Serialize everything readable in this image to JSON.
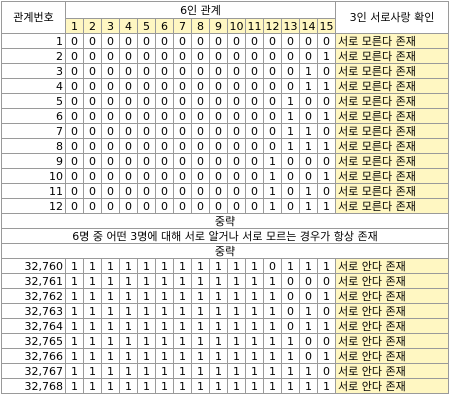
{
  "header": {
    "col_a": "관계번호",
    "group": "6인 관계",
    "col_result": "3인 서로사랑 확인",
    "indices": [
      "1",
      "2",
      "3",
      "4",
      "5",
      "6",
      "7",
      "8",
      "9",
      "10",
      "11",
      "12",
      "13",
      "14",
      "15"
    ]
  },
  "top_rows": [
    {
      "n": "1",
      "bits": [
        "0",
        "0",
        "0",
        "0",
        "0",
        "0",
        "0",
        "0",
        "0",
        "0",
        "0",
        "0",
        "0",
        "0",
        "0"
      ],
      "result": "서로 모른다 존재"
    },
    {
      "n": "2",
      "bits": [
        "0",
        "0",
        "0",
        "0",
        "0",
        "0",
        "0",
        "0",
        "0",
        "0",
        "0",
        "0",
        "0",
        "0",
        "1"
      ],
      "result": "서로 모른다 존재"
    },
    {
      "n": "3",
      "bits": [
        "0",
        "0",
        "0",
        "0",
        "0",
        "0",
        "0",
        "0",
        "0",
        "0",
        "0",
        "0",
        "0",
        "1",
        "0"
      ],
      "result": "서로 모른다 존재"
    },
    {
      "n": "4",
      "bits": [
        "0",
        "0",
        "0",
        "0",
        "0",
        "0",
        "0",
        "0",
        "0",
        "0",
        "0",
        "0",
        "0",
        "1",
        "1"
      ],
      "result": "서로 모른다 존재"
    },
    {
      "n": "5",
      "bits": [
        "0",
        "0",
        "0",
        "0",
        "0",
        "0",
        "0",
        "0",
        "0",
        "0",
        "0",
        "0",
        "1",
        "0",
        "0"
      ],
      "result": "서로 모른다 존재"
    },
    {
      "n": "6",
      "bits": [
        "0",
        "0",
        "0",
        "0",
        "0",
        "0",
        "0",
        "0",
        "0",
        "0",
        "0",
        "0",
        "1",
        "0",
        "1"
      ],
      "result": "서로 모른다 존재"
    },
    {
      "n": "7",
      "bits": [
        "0",
        "0",
        "0",
        "0",
        "0",
        "0",
        "0",
        "0",
        "0",
        "0",
        "0",
        "0",
        "1",
        "1",
        "0"
      ],
      "result": "서로 모른다 존재"
    },
    {
      "n": "8",
      "bits": [
        "0",
        "0",
        "0",
        "0",
        "0",
        "0",
        "0",
        "0",
        "0",
        "0",
        "0",
        "0",
        "1",
        "1",
        "1"
      ],
      "result": "서로 모른다 존재"
    },
    {
      "n": "9",
      "bits": [
        "0",
        "0",
        "0",
        "0",
        "0",
        "0",
        "0",
        "0",
        "0",
        "0",
        "0",
        "1",
        "0",
        "0",
        "0"
      ],
      "result": "서로 모른다 존재"
    },
    {
      "n": "10",
      "bits": [
        "0",
        "0",
        "0",
        "0",
        "0",
        "0",
        "0",
        "0",
        "0",
        "0",
        "0",
        "1",
        "0",
        "0",
        "1"
      ],
      "result": "서로 모른다 존재"
    },
    {
      "n": "11",
      "bits": [
        "0",
        "0",
        "0",
        "0",
        "0",
        "0",
        "0",
        "0",
        "0",
        "0",
        "0",
        "1",
        "0",
        "1",
        "0"
      ],
      "result": "서로 모른다 존재"
    },
    {
      "n": "12",
      "bits": [
        "0",
        "0",
        "0",
        "0",
        "0",
        "0",
        "0",
        "0",
        "0",
        "0",
        "0",
        "1",
        "0",
        "1",
        "1"
      ],
      "result": "서로 모른다 존재"
    }
  ],
  "ellipsis_1": "중략",
  "note": "6명 중 어떤 3명에 대해 서로 알거나 서로 모르는 경우가 항상 존재",
  "ellipsis_2": "중략",
  "bottom_rows": [
    {
      "n": "32,760",
      "bits": [
        "1",
        "1",
        "1",
        "1",
        "1",
        "1",
        "1",
        "1",
        "1",
        "1",
        "1",
        "0",
        "1",
        "1",
        "1"
      ],
      "result": "서로 안다 존재"
    },
    {
      "n": "32,761",
      "bits": [
        "1",
        "1",
        "1",
        "1",
        "1",
        "1",
        "1",
        "1",
        "1",
        "1",
        "1",
        "1",
        "0",
        "0",
        "0"
      ],
      "result": "서로 안다 존재"
    },
    {
      "n": "32,762",
      "bits": [
        "1",
        "1",
        "1",
        "1",
        "1",
        "1",
        "1",
        "1",
        "1",
        "1",
        "1",
        "1",
        "0",
        "0",
        "1"
      ],
      "result": "서로 안다 존재"
    },
    {
      "n": "32,763",
      "bits": [
        "1",
        "1",
        "1",
        "1",
        "1",
        "1",
        "1",
        "1",
        "1",
        "1",
        "1",
        "1",
        "0",
        "1",
        "0"
      ],
      "result": "서로 안다 존재"
    },
    {
      "n": "32,764",
      "bits": [
        "1",
        "1",
        "1",
        "1",
        "1",
        "1",
        "1",
        "1",
        "1",
        "1",
        "1",
        "1",
        "0",
        "1",
        "1"
      ],
      "result": "서로 안다 존재"
    },
    {
      "n": "32,765",
      "bits": [
        "1",
        "1",
        "1",
        "1",
        "1",
        "1",
        "1",
        "1",
        "1",
        "1",
        "1",
        "1",
        "1",
        "0",
        "0"
      ],
      "result": "서로 안다 존재"
    },
    {
      "n": "32,766",
      "bits": [
        "1",
        "1",
        "1",
        "1",
        "1",
        "1",
        "1",
        "1",
        "1",
        "1",
        "1",
        "1",
        "1",
        "0",
        "1"
      ],
      "result": "서로 안다 존재"
    },
    {
      "n": "32,767",
      "bits": [
        "1",
        "1",
        "1",
        "1",
        "1",
        "1",
        "1",
        "1",
        "1",
        "1",
        "1",
        "1",
        "1",
        "1",
        "0"
      ],
      "result": "서로 안다 존재"
    },
    {
      "n": "32,768",
      "bits": [
        "1",
        "1",
        "1",
        "1",
        "1",
        "1",
        "1",
        "1",
        "1",
        "1",
        "1",
        "1",
        "1",
        "1",
        "1"
      ],
      "result": "서로 안다 존재"
    }
  ],
  "colors": {
    "highlight": "#fff7c2",
    "grid": "#9a9a9a"
  }
}
